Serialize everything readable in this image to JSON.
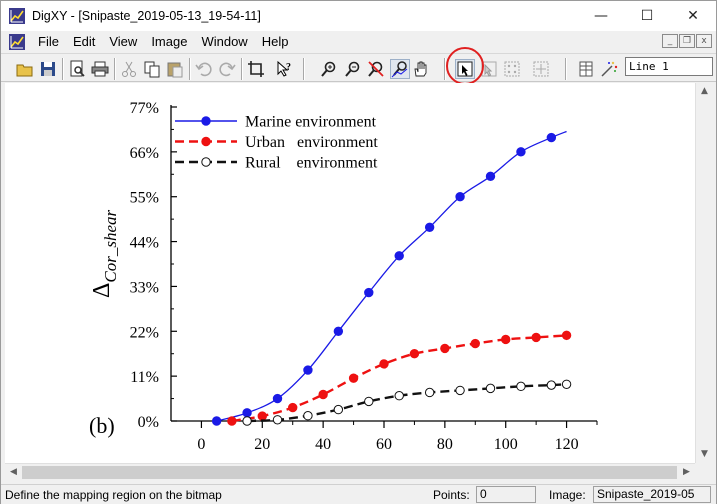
{
  "window": {
    "title": "DigXY - [Snipaste_2019-05-13_19-54-11]",
    "controls": {
      "minimize": "—",
      "maximize": "☐",
      "close": "✕"
    }
  },
  "menu": {
    "items": [
      "File",
      "Edit",
      "View",
      "Image",
      "Window",
      "Help"
    ],
    "mdi_controls": [
      "_",
      "❐",
      "x"
    ]
  },
  "toolbar": {
    "buttons": [
      "open-icon",
      "save-icon",
      "print-preview-icon",
      "print-icon",
      "cut-icon",
      "copy-icon",
      "paste-icon",
      "undo-icon",
      "redo-icon",
      "crop-icon",
      "whats-this-icon",
      "zoom-in-icon",
      "zoom-out-icon",
      "pick-color-icon",
      "auto-trace-icon",
      "hand-icon",
      "define-mapping-icon",
      "manual-point-icon",
      "grid-points-icon",
      "auto-points-icon",
      "table-icon",
      "sparkle-icon"
    ],
    "line_select_value": "Line 1",
    "accent_circle_color": "#e02020"
  },
  "status": {
    "message": "Define the mapping region on the bitmap",
    "points_label": "Points:",
    "points_value": "0",
    "image_label": "Image:",
    "image_value": "Snipaste_2019-05"
  },
  "chart_data": {
    "type": "line",
    "title": "",
    "panel_label": "(b)",
    "ylabel": "Δ",
    "ylabel_subscript": "Cor_shear",
    "xlabel": "",
    "xlim": [
      -10,
      130
    ],
    "ylim": [
      0,
      77
    ],
    "x_ticks": [
      "0",
      "20",
      "40",
      "60",
      "80",
      "100",
      "120"
    ],
    "y_ticks": [
      "0%",
      "11%",
      "22%",
      "33%",
      "44%",
      "55%",
      "66%",
      "77%"
    ],
    "legend_position": "top-left",
    "series": [
      {
        "name": "Marine environment",
        "color": "#1a1ae6",
        "dash": "solid",
        "marker": "filled",
        "x": [
          5,
          15,
          25,
          35,
          45,
          55,
          65,
          75,
          85,
          95,
          105,
          115,
          120
        ],
        "y": [
          0,
          2,
          5.5,
          12.5,
          22,
          31.5,
          40.5,
          47.5,
          55,
          60,
          66,
          69.5,
          71
        ]
      },
      {
        "name": "Urban   environment",
        "color": "#ee1111",
        "dash": "dashed",
        "marker": "filled",
        "x": [
          10,
          20,
          30,
          40,
          50,
          60,
          70,
          80,
          90,
          100,
          110,
          120
        ],
        "y": [
          0,
          1.2,
          3.3,
          6.5,
          10.5,
          14,
          16.5,
          17.8,
          19,
          20,
          20.5,
          21
        ]
      },
      {
        "name": "Rural    environment",
        "color": "#111111",
        "dash": "dashed",
        "marker": "open",
        "x": [
          15,
          25,
          35,
          45,
          55,
          65,
          75,
          85,
          95,
          105,
          115,
          120
        ],
        "y": [
          0,
          0.3,
          1.3,
          2.8,
          4.8,
          6.2,
          7,
          7.5,
          8,
          8.5,
          8.8,
          9
        ]
      }
    ]
  }
}
